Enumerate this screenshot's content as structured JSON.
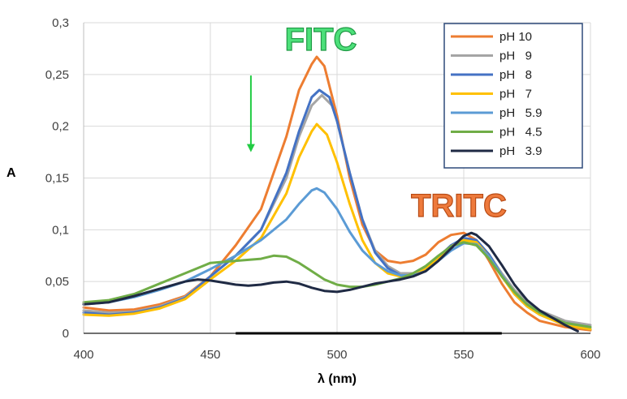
{
  "chart_data": {
    "type": "line",
    "title": "",
    "xlabel": "λ (nm)",
    "ylabel": "A",
    "xlim": [
      400,
      600
    ],
    "ylim": [
      0,
      0.3
    ],
    "x_ticks": [
      "400",
      "450",
      "500",
      "550",
      "600"
    ],
    "y_ticks": [
      "0",
      "0,05",
      "0,1",
      "0,15",
      "0,2",
      "0,25",
      "0,3"
    ],
    "grid": true,
    "legend_position": "top-right",
    "annotations": [
      {
        "text": "FITC",
        "color": "#4de07a",
        "stroke": "#1f9a45"
      },
      {
        "text": "TRITC",
        "color": "#ee7a3c",
        "stroke": "#b84a14"
      }
    ],
    "arrow": {
      "x": 466,
      "y_from": 0.249,
      "y_to": 0.175,
      "color": "#22cc44"
    },
    "series": [
      {
        "name": "pH 10",
        "color": "#ed7d31",
        "points": [
          [
            400,
            0.025
          ],
          [
            410,
            0.022
          ],
          [
            420,
            0.023
          ],
          [
            430,
            0.028
          ],
          [
            440,
            0.036
          ],
          [
            450,
            0.055
          ],
          [
            460,
            0.085
          ],
          [
            470,
            0.12
          ],
          [
            480,
            0.19
          ],
          [
            485,
            0.235
          ],
          [
            490,
            0.26
          ],
          [
            492,
            0.267
          ],
          [
            495,
            0.258
          ],
          [
            500,
            0.21
          ],
          [
            505,
            0.15
          ],
          [
            510,
            0.105
          ],
          [
            515,
            0.08
          ],
          [
            520,
            0.07
          ],
          [
            525,
            0.068
          ],
          [
            530,
            0.07
          ],
          [
            535,
            0.076
          ],
          [
            540,
            0.088
          ],
          [
            545,
            0.095
          ],
          [
            550,
            0.097
          ],
          [
            555,
            0.09
          ],
          [
            560,
            0.07
          ],
          [
            565,
            0.048
          ],
          [
            570,
            0.03
          ],
          [
            575,
            0.02
          ],
          [
            580,
            0.012
          ],
          [
            590,
            0.006
          ],
          [
            600,
            0.003
          ]
        ]
      },
      {
        "name": "pH   9",
        "color": "#a5a5a5",
        "points": [
          [
            400,
            0.022
          ],
          [
            410,
            0.02
          ],
          [
            420,
            0.021
          ],
          [
            430,
            0.026
          ],
          [
            440,
            0.035
          ],
          [
            450,
            0.055
          ],
          [
            460,
            0.075
          ],
          [
            470,
            0.1
          ],
          [
            480,
            0.15
          ],
          [
            485,
            0.19
          ],
          [
            490,
            0.22
          ],
          [
            494,
            0.23
          ],
          [
            498,
            0.22
          ],
          [
            500,
            0.205
          ],
          [
            505,
            0.155
          ],
          [
            510,
            0.11
          ],
          [
            515,
            0.08
          ],
          [
            520,
            0.065
          ],
          [
            525,
            0.058
          ],
          [
            530,
            0.058
          ],
          [
            535,
            0.063
          ],
          [
            540,
            0.074
          ],
          [
            545,
            0.085
          ],
          [
            550,
            0.09
          ],
          [
            555,
            0.088
          ],
          [
            560,
            0.076
          ],
          [
            565,
            0.058
          ],
          [
            570,
            0.042
          ],
          [
            575,
            0.03
          ],
          [
            580,
            0.022
          ],
          [
            590,
            0.012
          ],
          [
            600,
            0.008
          ]
        ]
      },
      {
        "name": "pH   8",
        "color": "#4472c4",
        "points": [
          [
            400,
            0.02
          ],
          [
            410,
            0.018
          ],
          [
            420,
            0.02
          ],
          [
            430,
            0.025
          ],
          [
            440,
            0.034
          ],
          [
            450,
            0.055
          ],
          [
            460,
            0.075
          ],
          [
            470,
            0.1
          ],
          [
            480,
            0.155
          ],
          [
            485,
            0.195
          ],
          [
            490,
            0.228
          ],
          [
            493,
            0.235
          ],
          [
            497,
            0.228
          ],
          [
            500,
            0.205
          ],
          [
            505,
            0.155
          ],
          [
            510,
            0.11
          ],
          [
            515,
            0.078
          ],
          [
            520,
            0.063
          ],
          [
            525,
            0.056
          ],
          [
            530,
            0.056
          ],
          [
            535,
            0.062
          ],
          [
            540,
            0.073
          ],
          [
            545,
            0.085
          ],
          [
            550,
            0.092
          ],
          [
            555,
            0.09
          ],
          [
            560,
            0.076
          ],
          [
            565,
            0.056
          ],
          [
            570,
            0.038
          ],
          [
            575,
            0.026
          ],
          [
            580,
            0.018
          ],
          [
            590,
            0.008
          ],
          [
            600,
            0.004
          ]
        ]
      },
      {
        "name": "pH   7",
        "color": "#ffc000",
        "points": [
          [
            400,
            0.018
          ],
          [
            410,
            0.017
          ],
          [
            420,
            0.019
          ],
          [
            430,
            0.024
          ],
          [
            440,
            0.033
          ],
          [
            450,
            0.052
          ],
          [
            460,
            0.07
          ],
          [
            470,
            0.092
          ],
          [
            480,
            0.135
          ],
          [
            485,
            0.17
          ],
          [
            490,
            0.195
          ],
          [
            492,
            0.202
          ],
          [
            496,
            0.192
          ],
          [
            500,
            0.165
          ],
          [
            505,
            0.125
          ],
          [
            510,
            0.09
          ],
          [
            515,
            0.068
          ],
          [
            520,
            0.058
          ],
          [
            525,
            0.055
          ],
          [
            530,
            0.056
          ],
          [
            535,
            0.062
          ],
          [
            540,
            0.073
          ],
          [
            545,
            0.084
          ],
          [
            550,
            0.09
          ],
          [
            555,
            0.088
          ],
          [
            560,
            0.074
          ],
          [
            565,
            0.055
          ],
          [
            570,
            0.038
          ],
          [
            575,
            0.026
          ],
          [
            580,
            0.018
          ],
          [
            590,
            0.008
          ],
          [
            600,
            0.004
          ]
        ]
      },
      {
        "name": "pH   5.9",
        "color": "#5b9bd5",
        "points": [
          [
            400,
            0.028
          ],
          [
            410,
            0.03
          ],
          [
            420,
            0.035
          ],
          [
            430,
            0.042
          ],
          [
            440,
            0.05
          ],
          [
            445,
            0.056
          ],
          [
            450,
            0.062
          ],
          [
            460,
            0.075
          ],
          [
            470,
            0.09
          ],
          [
            480,
            0.11
          ],
          [
            485,
            0.125
          ],
          [
            490,
            0.138
          ],
          [
            492,
            0.14
          ],
          [
            495,
            0.136
          ],
          [
            500,
            0.12
          ],
          [
            505,
            0.098
          ],
          [
            510,
            0.08
          ],
          [
            515,
            0.068
          ],
          [
            520,
            0.06
          ],
          [
            525,
            0.056
          ],
          [
            530,
            0.056
          ],
          [
            535,
            0.06
          ],
          [
            540,
            0.07
          ],
          [
            545,
            0.08
          ],
          [
            550,
            0.087
          ],
          [
            555,
            0.086
          ],
          [
            560,
            0.074
          ],
          [
            565,
            0.056
          ],
          [
            570,
            0.04
          ],
          [
            575,
            0.028
          ],
          [
            580,
            0.02
          ],
          [
            590,
            0.01
          ],
          [
            600,
            0.006
          ]
        ]
      },
      {
        "name": "pH   4.5",
        "color": "#70ad47",
        "points": [
          [
            400,
            0.03
          ],
          [
            410,
            0.032
          ],
          [
            420,
            0.038
          ],
          [
            430,
            0.048
          ],
          [
            440,
            0.058
          ],
          [
            450,
            0.068
          ],
          [
            460,
            0.07
          ],
          [
            470,
            0.072
          ],
          [
            475,
            0.075
          ],
          [
            480,
            0.074
          ],
          [
            485,
            0.068
          ],
          [
            490,
            0.06
          ],
          [
            495,
            0.052
          ],
          [
            500,
            0.047
          ],
          [
            505,
            0.045
          ],
          [
            510,
            0.045
          ],
          [
            515,
            0.047
          ],
          [
            520,
            0.05
          ],
          [
            525,
            0.053
          ],
          [
            530,
            0.058
          ],
          [
            535,
            0.065
          ],
          [
            540,
            0.075
          ],
          [
            545,
            0.084
          ],
          [
            550,
            0.088
          ],
          [
            555,
            0.085
          ],
          [
            560,
            0.072
          ],
          [
            565,
            0.055
          ],
          [
            570,
            0.04
          ],
          [
            575,
            0.028
          ],
          [
            580,
            0.02
          ],
          [
            590,
            0.01
          ],
          [
            600,
            0.006
          ]
        ]
      },
      {
        "name": "pH   3.9",
        "color": "#1f2a44",
        "points": [
          [
            400,
            0.028
          ],
          [
            410,
            0.03
          ],
          [
            420,
            0.036
          ],
          [
            430,
            0.043
          ],
          [
            440,
            0.05
          ],
          [
            445,
            0.052
          ],
          [
            450,
            0.051
          ],
          [
            455,
            0.049
          ],
          [
            460,
            0.047
          ],
          [
            465,
            0.046
          ],
          [
            470,
            0.047
          ],
          [
            475,
            0.049
          ],
          [
            480,
            0.05
          ],
          [
            485,
            0.048
          ],
          [
            490,
            0.044
          ],
          [
            495,
            0.041
          ],
          [
            500,
            0.04
          ],
          [
            505,
            0.042
          ],
          [
            510,
            0.045
          ],
          [
            515,
            0.048
          ],
          [
            520,
            0.05
          ],
          [
            525,
            0.052
          ],
          [
            530,
            0.055
          ],
          [
            535,
            0.06
          ],
          [
            540,
            0.07
          ],
          [
            545,
            0.082
          ],
          [
            550,
            0.094
          ],
          [
            553,
            0.097
          ],
          [
            555,
            0.095
          ],
          [
            560,
            0.084
          ],
          [
            565,
            0.066
          ],
          [
            570,
            0.047
          ],
          [
            575,
            0.032
          ],
          [
            580,
            0.022
          ],
          [
            590,
            0.008
          ],
          [
            595,
            0.002
          ]
        ]
      }
    ]
  }
}
